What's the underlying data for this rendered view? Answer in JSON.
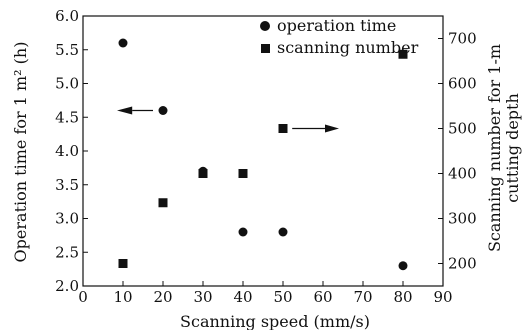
{
  "chart_data": {
    "type": "scatter",
    "xlabel": "Scanning speed (mm/s)",
    "ylabel_left": "Operation time for 1 m² (h)",
    "ylabel_right_lines": [
      "Scanning number for 1-m",
      "cutting depth"
    ],
    "xlim": [
      0,
      90
    ],
    "ylim_left": [
      2.0,
      6.0
    ],
    "ylim_right": [
      150,
      750
    ],
    "xticks": [
      "0",
      "10",
      "20",
      "30",
      "40",
      "50",
      "60",
      "70",
      "80",
      "90"
    ],
    "yticks_left": [
      "2.0",
      "2.5",
      "3.0",
      "3.5",
      "4.0",
      "4.5",
      "5.0",
      "5.5",
      "6.0"
    ],
    "yticks_right": [
      "200",
      "300",
      "400",
      "500",
      "600",
      "700"
    ],
    "legend_position": "top-center",
    "grid": false,
    "series": [
      {
        "name": "operation time",
        "marker": "circle",
        "axis": "left",
        "x": [
          10,
          20,
          30,
          40,
          50,
          80
        ],
        "y": [
          5.6,
          4.6,
          3.7,
          2.8,
          2.8,
          2.3
        ]
      },
      {
        "name": "scanning number",
        "marker": "square",
        "axis": "right",
        "x": [
          10,
          20,
          30,
          40,
          50,
          80
        ],
        "y": [
          200,
          335,
          400,
          400,
          500,
          665
        ]
      }
    ],
    "annotations": [
      {
        "type": "arrow",
        "direction": "left",
        "near": "operation time series"
      },
      {
        "type": "arrow",
        "direction": "right",
        "near": "scanning number series"
      }
    ]
  }
}
